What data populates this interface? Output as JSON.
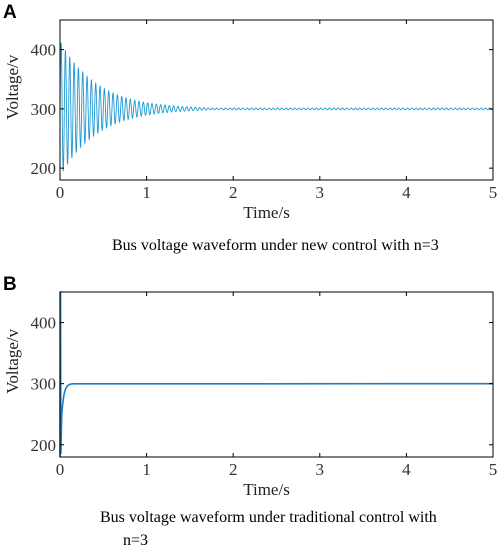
{
  "chart_data": [
    {
      "panel": "A",
      "type": "line",
      "caption": "Bus voltage waveform under new control with n=3",
      "xlabel": "Time/s",
      "ylabel": "Voltage/v",
      "xlim": [
        0,
        5
      ],
      "ylim": [
        180,
        450
      ],
      "xticks": [
        "0",
        "1",
        "2",
        "3",
        "4",
        "5"
      ],
      "yticks": [
        "200",
        "300",
        "400"
      ],
      "series_color": "#1f9ad6",
      "signal": {
        "description": "decaying oscillation settling to steady state",
        "steady_value": 300,
        "initial_amplitude": 115,
        "frequency_hz": 20,
        "decay_time_constant_s": 0.42,
        "settled_by_s": 1.7,
        "end_s": 5
      },
      "grid": false
    },
    {
      "panel": "B",
      "type": "line",
      "caption": "Bus voltage waveform under traditional control with n=3",
      "xlabel": "Time/s",
      "ylabel": "Voltage/v",
      "xlim": [
        0,
        5
      ],
      "ylim": [
        180,
        450
      ],
      "xticks": [
        "0",
        "1",
        "2",
        "3",
        "4",
        "5"
      ],
      "yticks": [
        "200",
        "300",
        "400"
      ],
      "series_color": "#1f7ec0",
      "signal": {
        "description": "initial spike then fast settling to steady state",
        "steady_value": 300,
        "spike_max": 450,
        "dip_min": 248,
        "dip_time_s": 0.02,
        "settled_by_s": 0.15,
        "end_s": 5
      },
      "grid": false
    }
  ]
}
